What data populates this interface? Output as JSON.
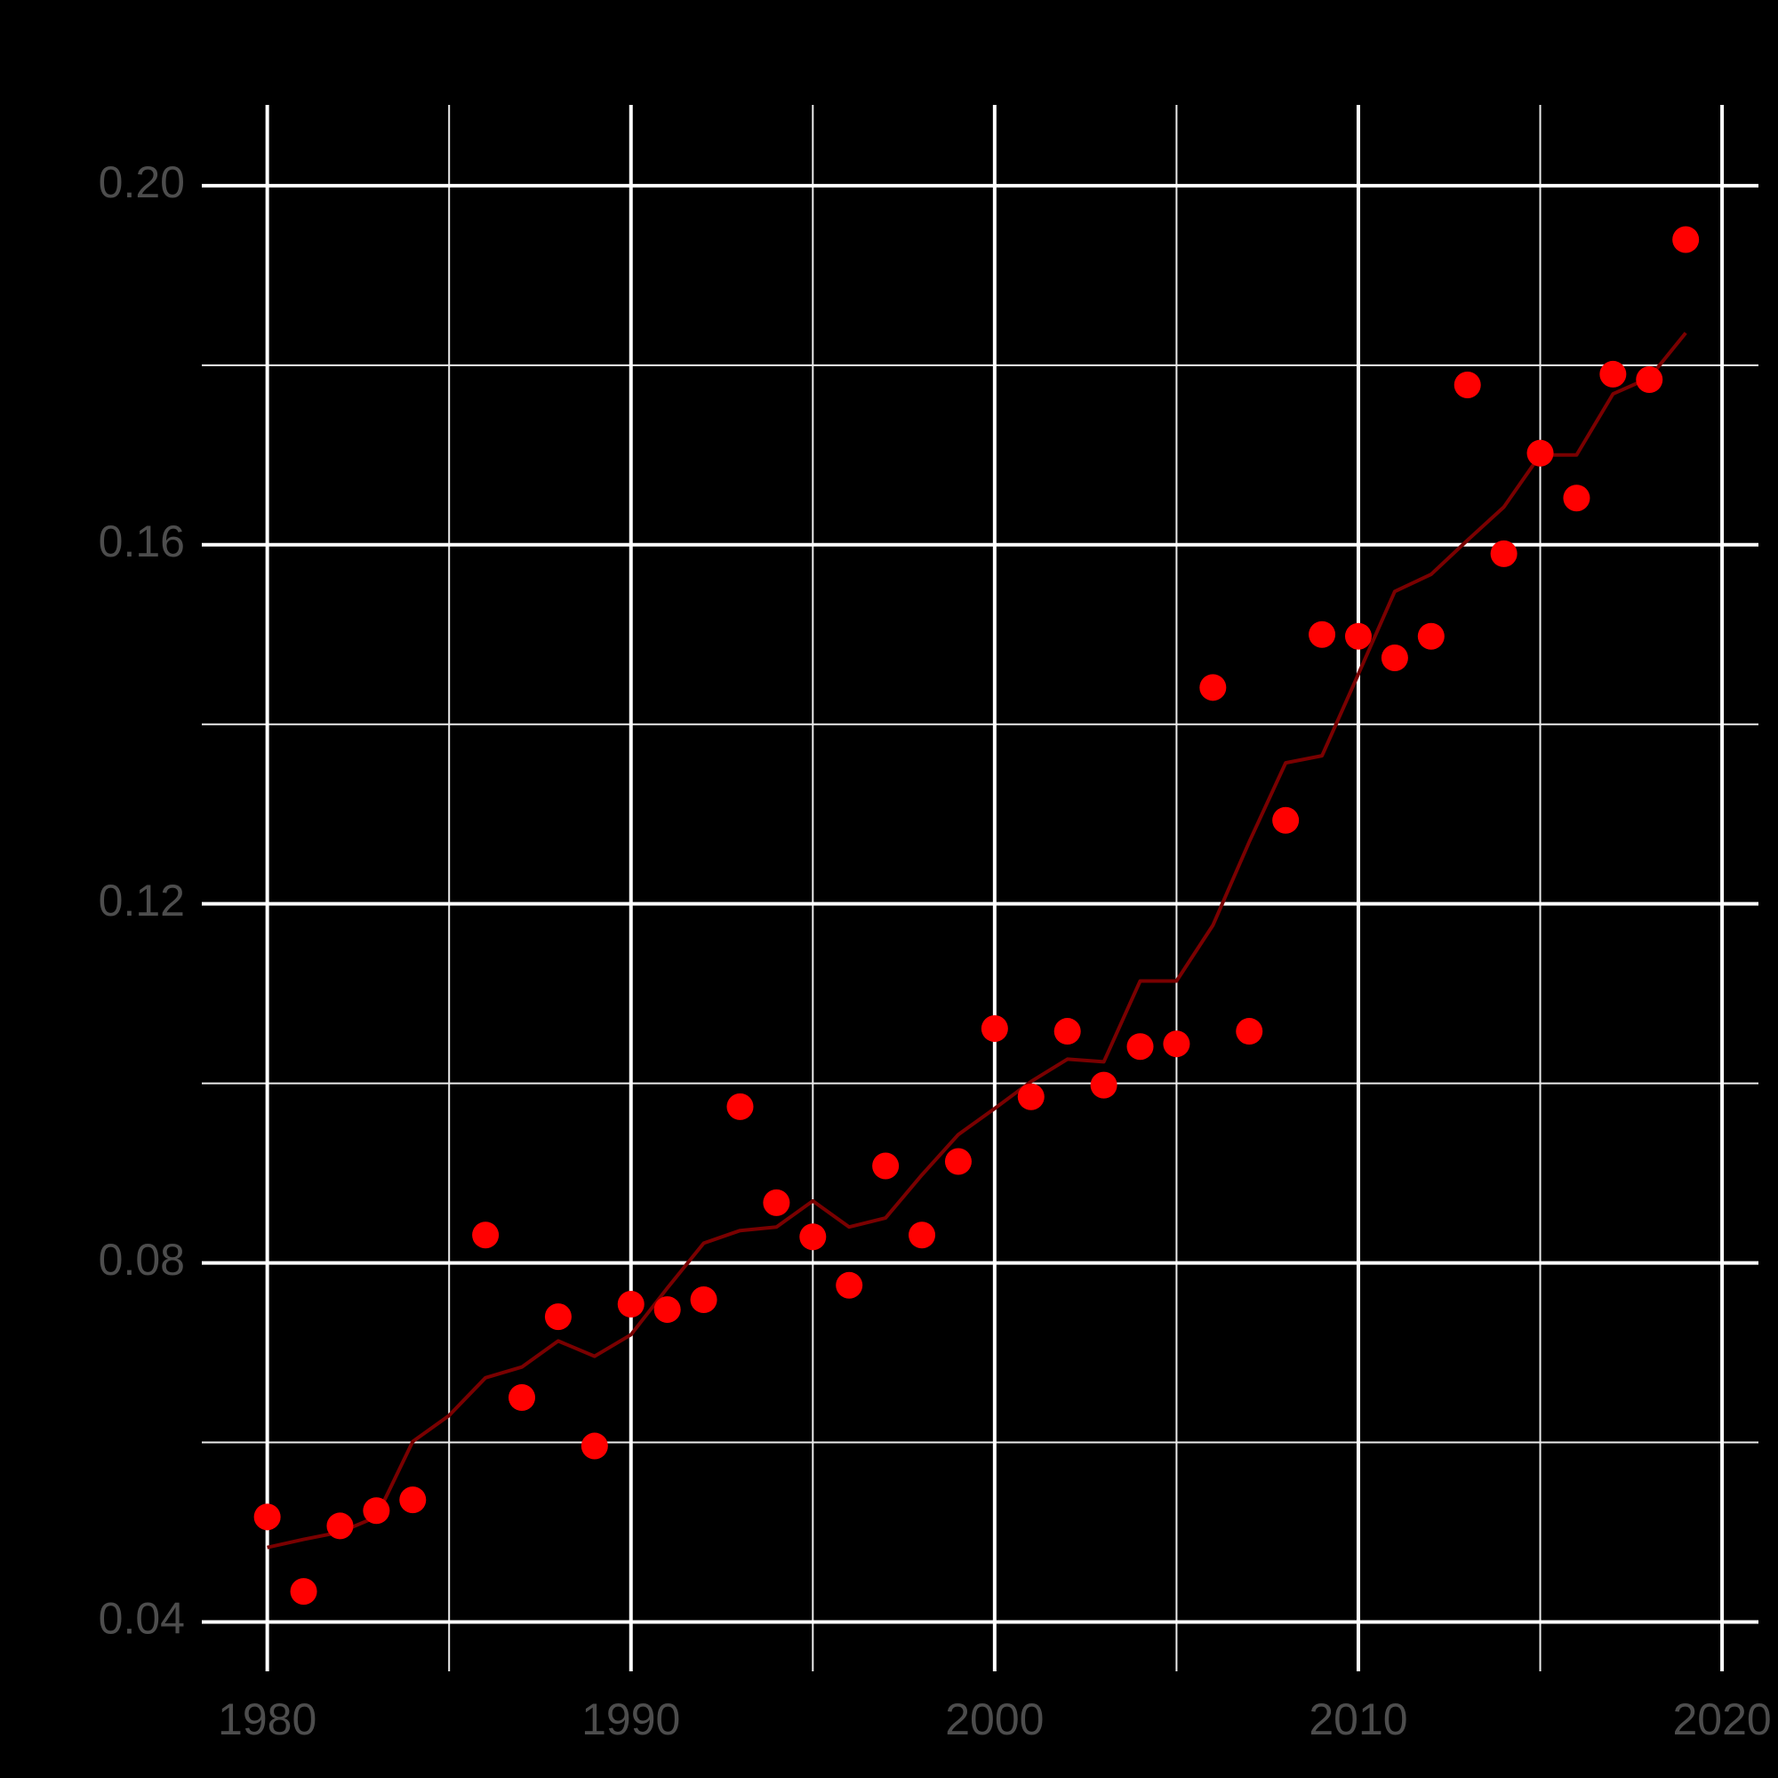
{
  "chart_data": {
    "type": "scatter",
    "title": "",
    "xlabel": "",
    "ylabel": "",
    "xlim": [
      1978.2,
      2021.0
    ],
    "ylim": [
      0.0345,
      0.209
    ],
    "x_ticks": [
      1980,
      1990,
      2000,
      2010,
      2020
    ],
    "x_tick_labels": [
      "1980",
      "1990",
      "2000",
      "2010",
      "2020"
    ],
    "x_minor_ticks": [
      1985,
      1995,
      2005,
      2015
    ],
    "y_ticks": [
      0.04,
      0.08,
      0.12,
      0.16,
      0.2
    ],
    "y_tick_labels": [
      "0.04",
      "0.08",
      "0.12",
      "0.16",
      "0.20"
    ],
    "y_minor_ticks": [
      0.06,
      0.1,
      0.14,
      0.18
    ],
    "grid": true,
    "legend": "none",
    "series": [
      {
        "type": "scatter",
        "color": "#ff0000",
        "x": [
          1980,
          1981,
          1982,
          1983,
          1984,
          1986,
          1987,
          1988,
          1989,
          1990,
          1991,
          1992,
          1993,
          1994,
          1995,
          1996,
          1997,
          1998,
          1999,
          2000,
          2001,
          2002,
          2003,
          2004,
          2005,
          2006,
          2007,
          2008,
          2009,
          2010,
          2011,
          2012,
          2013,
          2014,
          2015,
          2016,
          2017,
          2018,
          2019
        ],
        "y": [
          0.0517,
          0.0434,
          0.0507,
          0.0524,
          0.0536,
          0.0831,
          0.065,
          0.074,
          0.0596,
          0.0754,
          0.0748,
          0.0759,
          0.0974,
          0.0867,
          0.0829,
          0.0775,
          0.0908,
          0.0831,
          0.0913,
          0.1061,
          0.0985,
          0.1058,
          0.0998,
          0.1041,
          0.1044,
          0.1441,
          0.1058,
          0.1293,
          0.15,
          0.1498,
          0.1474,
          0.1498,
          0.1778,
          0.159,
          0.1702,
          0.1652,
          0.179,
          0.1784,
          0.194
        ]
      },
      {
        "type": "line",
        "color": "#7a0000",
        "x": [
          1980,
          1981,
          1982,
          1983,
          1984,
          1985,
          1986,
          1987,
          1988,
          1989,
          1990,
          1991,
          1992,
          1993,
          1994,
          1995,
          1996,
          1997,
          1998,
          1999,
          2000,
          2001,
          2002,
          2003,
          2004,
          2005,
          2006,
          2007,
          2008,
          2009,
          2010,
          2011,
          2012,
          2013,
          2014,
          2015,
          2016,
          2017,
          2018,
          2019
        ],
        "y": [
          0.0483,
          0.0492,
          0.05,
          0.0517,
          0.0601,
          0.063,
          0.0672,
          0.0684,
          0.0713,
          0.0696,
          0.072,
          0.0772,
          0.0822,
          0.0836,
          0.084,
          0.0869,
          0.084,
          0.085,
          0.0898,
          0.0943,
          0.0972,
          0.1002,
          0.1027,
          0.1024,
          0.1114,
          0.1114,
          0.1176,
          0.1269,
          0.1357,
          0.1365,
          0.1456,
          0.1548,
          0.1567,
          0.1605,
          0.1642,
          0.17,
          0.17,
          0.1768,
          0.1786,
          0.1836
        ]
      }
    ]
  }
}
